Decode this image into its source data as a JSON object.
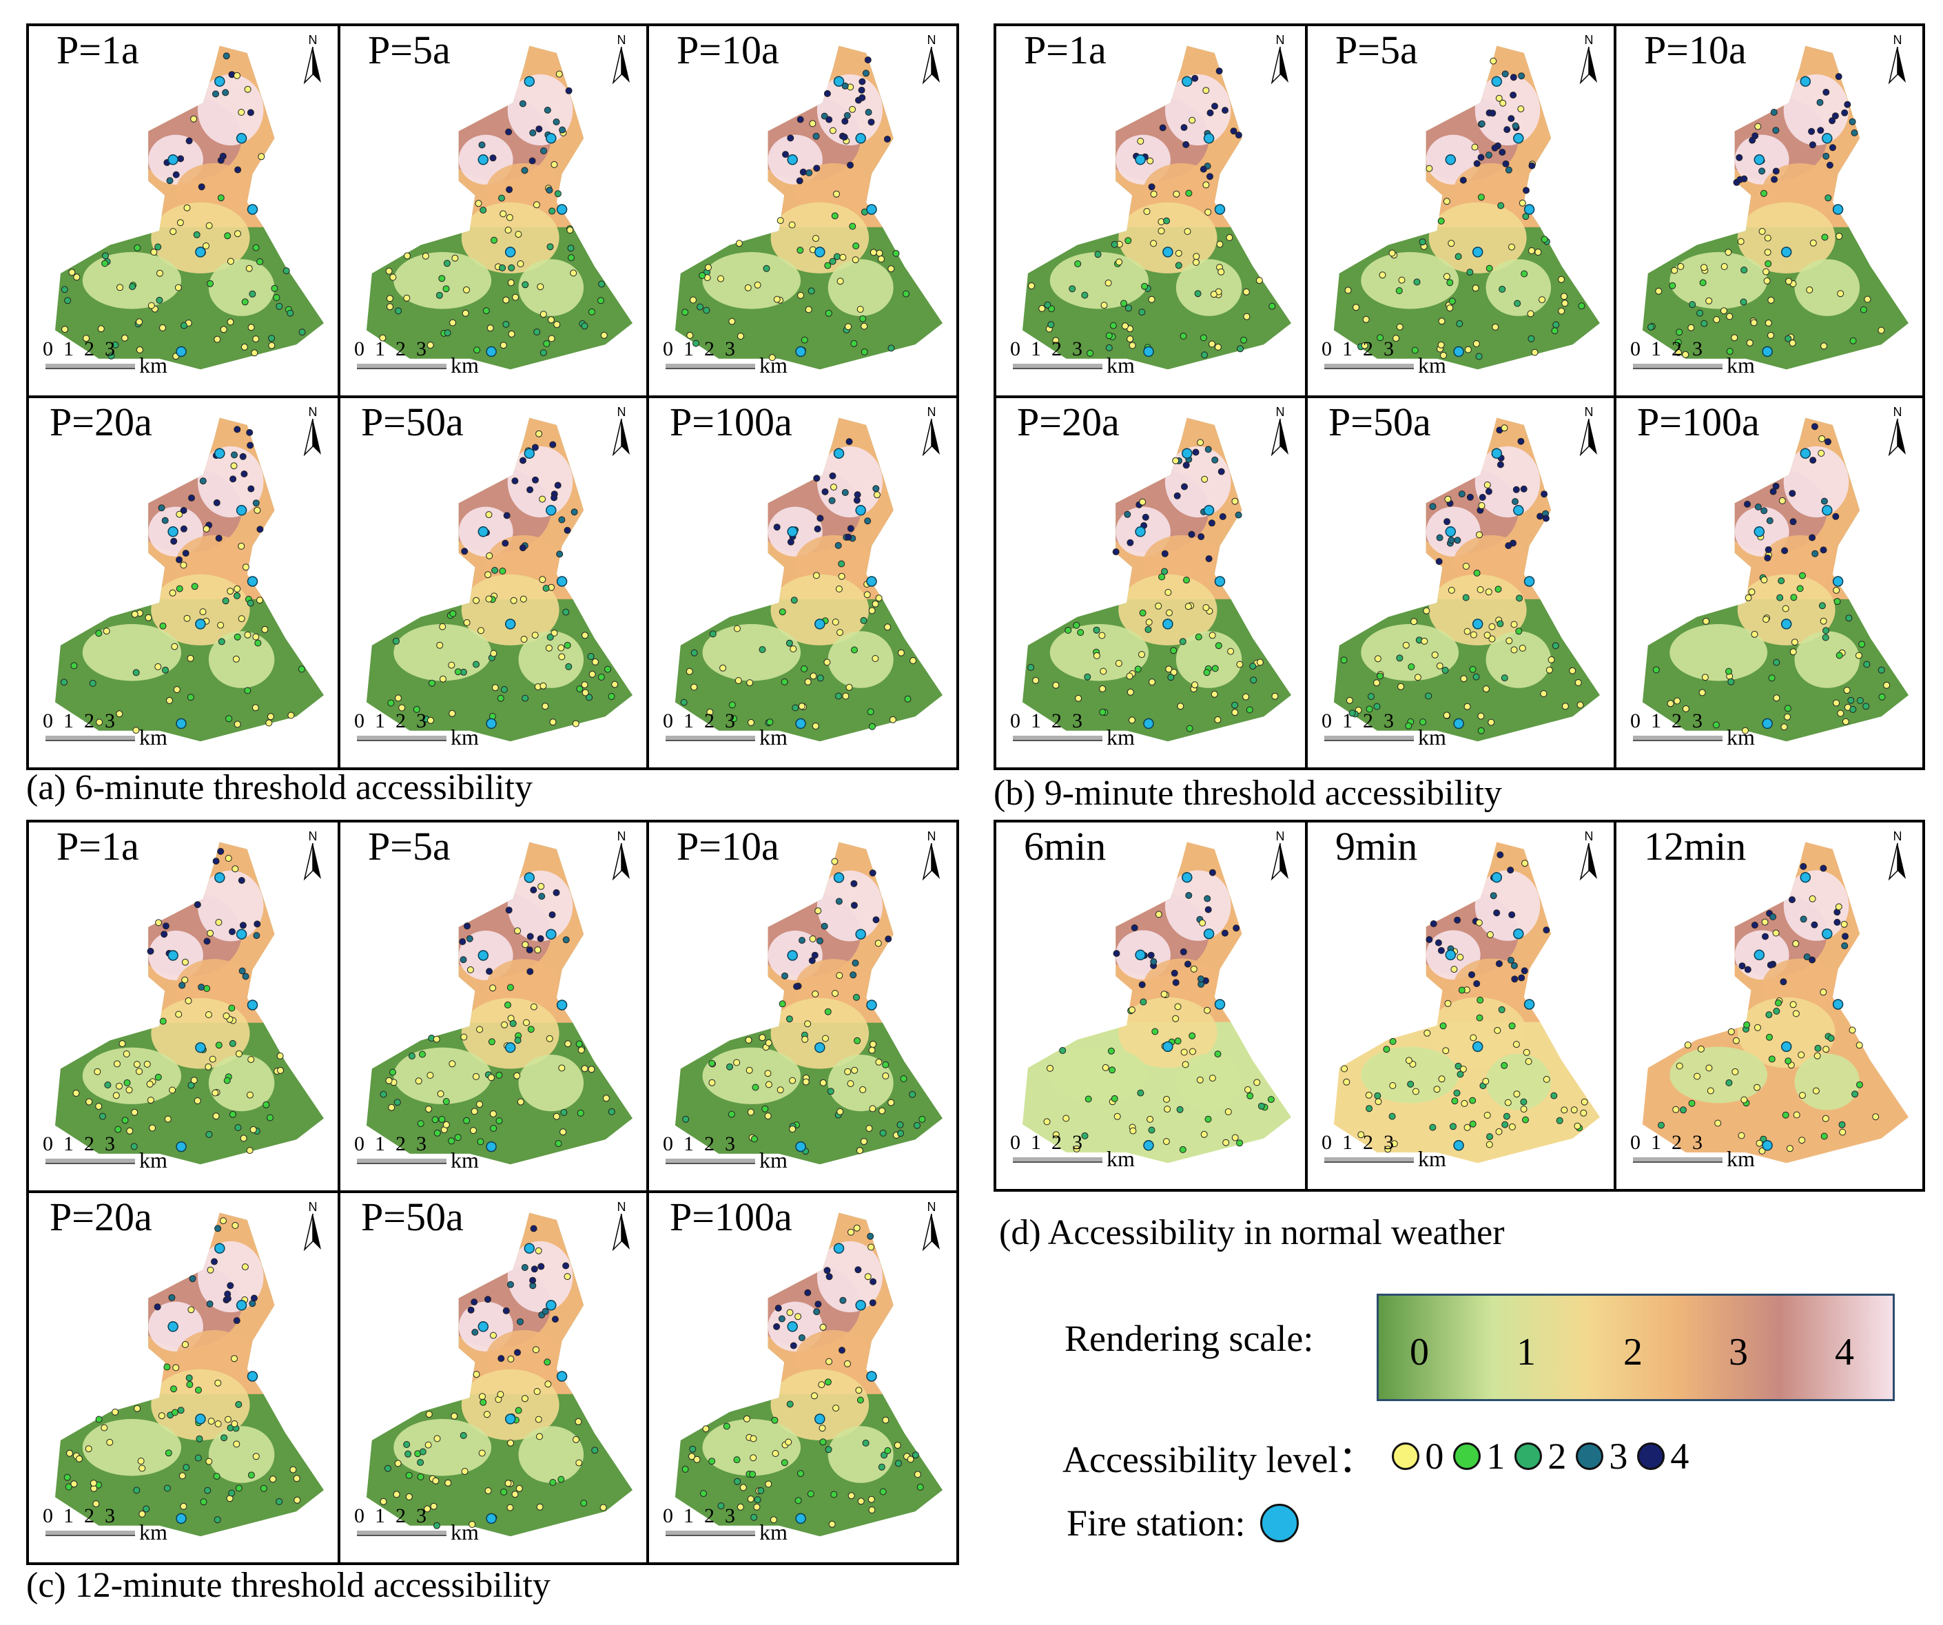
{
  "groups": [
    {
      "id": "a",
      "caption": "(a)  6-minute threshold accessibility",
      "panels": [
        {
          "label": "P=1a"
        },
        {
          "label": "P=5a"
        },
        {
          "label": "P=10a"
        },
        {
          "label": "P=20a"
        },
        {
          "label": "P=50a"
        },
        {
          "label": "P=100a"
        }
      ]
    },
    {
      "id": "b",
      "caption": "(b)  9-minute threshold accessibility",
      "panels": [
        {
          "label": "P=1a"
        },
        {
          "label": "P=5a"
        },
        {
          "label": "P=10a"
        },
        {
          "label": "P=20a"
        },
        {
          "label": "P=50a"
        },
        {
          "label": "P=100a"
        }
      ]
    },
    {
      "id": "c",
      "caption": "(c)  12-minute threshold accessibility",
      "panels": [
        {
          "label": "P=1a"
        },
        {
          "label": "P=5a"
        },
        {
          "label": "P=10a"
        },
        {
          "label": "P=20a"
        },
        {
          "label": "P=50a"
        },
        {
          "label": "P=100a"
        }
      ]
    },
    {
      "id": "d",
      "caption": "(d)  Accessibility in normal weather",
      "panels": [
        {
          "label": "6min"
        },
        {
          "label": "9min"
        },
        {
          "label": "12min"
        }
      ]
    }
  ],
  "north_label": "N",
  "scalebar": {
    "ticks": "0  1  2  3",
    "unit": "km"
  },
  "legend": {
    "rendering_title": "Rendering scale:",
    "rendering_values": [
      "0",
      "1",
      "2",
      "3",
      "4"
    ],
    "rendering_colors": [
      "#5f9a45",
      "#cfe49a",
      "#f2d990",
      "#efb67a",
      "#c88a80",
      "#f6e2ea"
    ],
    "accessibility_title": "Accessibility level：",
    "levels": [
      {
        "value": "0",
        "color": "#f8f47a"
      },
      {
        "value": "1",
        "color": "#3fd13f"
      },
      {
        "value": "2",
        "color": "#2fae6a"
      },
      {
        "value": "3",
        "color": "#1e6f86"
      },
      {
        "value": "4",
        "color": "#17206b"
      }
    ],
    "fire_title": "Fire station:",
    "fire_color": "#22b5e6"
  }
}
